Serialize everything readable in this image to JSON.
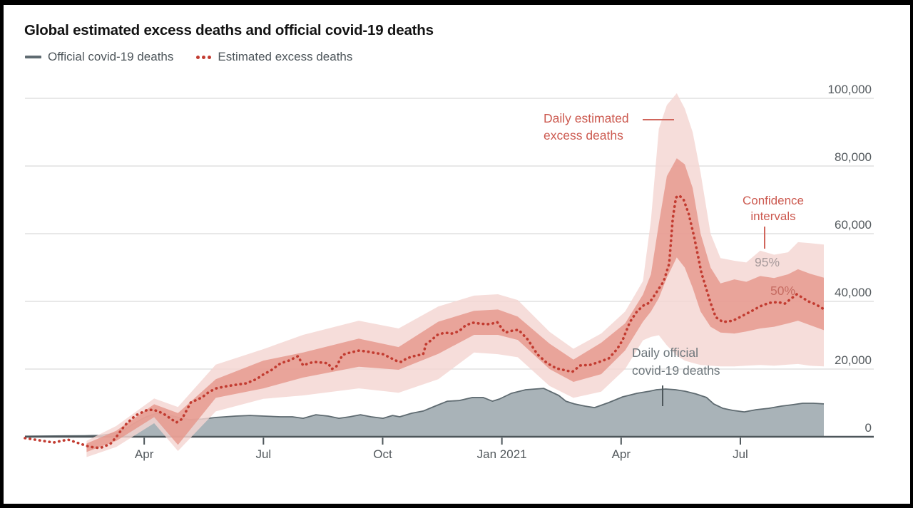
{
  "title": "Global estimated excess deaths and official covid-19 deaths",
  "legend": {
    "official": {
      "label": "Official covid-19 deaths",
      "color": "#5f6b71",
      "marker": "dash-line"
    },
    "excess": {
      "label": "Estimated excess deaths",
      "color": "#c23b30",
      "marker": "three-dots"
    }
  },
  "annotations": {
    "daily_excess": {
      "line1": "Daily estimated",
      "line2": "excess deaths",
      "color": "#cc5a50"
    },
    "confidence": {
      "line1": "Confidence",
      "line2": "intervals",
      "color": "#cc5a50"
    },
    "ci95": "95%",
    "ci50": "50%",
    "daily_official": {
      "line1": "Daily official",
      "line2": "covid-19 deaths",
      "color": "#6d767b"
    }
  },
  "colors": {
    "excess_line": "#c23b30",
    "official_line": "#5f6b71",
    "official_fill": "#a9b3b8",
    "band95_fill": "#f4d6d2",
    "band50_fill": "#e59488",
    "gridline": "#d9d9d9",
    "axis_line": "#4d565a",
    "tick_label": "#53595d",
    "title_text": "#131313",
    "frame_border": "#000000"
  },
  "chart_data": {
    "type": "line",
    "title": "Global estimated excess deaths and official covid-19 deaths",
    "x_unit": "months since Jan 2020 (0 = Jan 2020)",
    "x_domain": [
      0,
      20.1
    ],
    "y_domain": [
      -8000,
      104000
    ],
    "grid": true,
    "legend_position": "top-left",
    "y_ticks": [
      {
        "v": 0,
        "label": "0"
      },
      {
        "v": 20000,
        "label": "20,000"
      },
      {
        "v": 40000,
        "label": "40,000"
      },
      {
        "v": 60000,
        "label": "60,000"
      },
      {
        "v": 80000,
        "label": "80,000"
      },
      {
        "v": 100000,
        "label": "100,000"
      }
    ],
    "x_ticks": [
      {
        "m": 3,
        "label": "Apr"
      },
      {
        "m": 6,
        "label": "Jul"
      },
      {
        "m": 9,
        "label": "Oct"
      },
      {
        "m": 12,
        "label": "Jan 2021"
      },
      {
        "m": 15,
        "label": "Apr"
      },
      {
        "m": 18,
        "label": "Jul"
      }
    ],
    "series": [
      {
        "name": "Official covid-19 deaths",
        "style": "area",
        "line_color": "#5f6b71",
        "fill_color": "#a9b3b8",
        "points": [
          [
            0,
            150
          ],
          [
            0.5,
            200
          ],
          [
            1,
            250
          ],
          [
            1.5,
            300
          ],
          [
            1.89,
            400
          ],
          [
            2.3,
            1050
          ],
          [
            2.51,
            2100
          ],
          [
            2.78,
            4200
          ],
          [
            3.05,
            5900
          ],
          [
            3.32,
            6950
          ],
          [
            3.59,
            6500
          ],
          [
            3.86,
            5700
          ],
          [
            4.13,
            5050
          ],
          [
            4.45,
            5250
          ],
          [
            4.81,
            5700
          ],
          [
            5.3,
            6100
          ],
          [
            5.66,
            6300
          ],
          [
            6.01,
            6100
          ],
          [
            6.43,
            5900
          ],
          [
            6.73,
            5900
          ],
          [
            7,
            5450
          ],
          [
            7.32,
            6500
          ],
          [
            7.63,
            6100
          ],
          [
            7.9,
            5450
          ],
          [
            8.17,
            5900
          ],
          [
            8.44,
            6500
          ],
          [
            8.71,
            5900
          ],
          [
            9.01,
            5450
          ],
          [
            9.25,
            6300
          ],
          [
            9.43,
            5900
          ],
          [
            9.73,
            6950
          ],
          [
            10.02,
            7600
          ],
          [
            10.32,
            9050
          ],
          [
            10.63,
            10500
          ],
          [
            10.92,
            10700
          ],
          [
            11.26,
            11600
          ],
          [
            11.53,
            11600
          ],
          [
            11.76,
            10500
          ],
          [
            11.94,
            11150
          ],
          [
            12.24,
            12850
          ],
          [
            12.6,
            13900
          ],
          [
            13.05,
            14300
          ],
          [
            13.43,
            12200
          ],
          [
            13.61,
            10500
          ],
          [
            13.82,
            9700
          ],
          [
            14.09,
            9050
          ],
          [
            14.33,
            8600
          ],
          [
            14.69,
            10100
          ],
          [
            15.04,
            11800
          ],
          [
            15.4,
            12850
          ],
          [
            15.71,
            13450
          ],
          [
            15.89,
            13900
          ],
          [
            16.12,
            14100
          ],
          [
            16.37,
            13900
          ],
          [
            16.61,
            13450
          ],
          [
            16.88,
            12650
          ],
          [
            17.15,
            11600
          ],
          [
            17.33,
            9700
          ],
          [
            17.56,
            8400
          ],
          [
            17.81,
            7800
          ],
          [
            18.1,
            7350
          ],
          [
            18.4,
            8000
          ],
          [
            18.71,
            8400
          ],
          [
            19.03,
            9050
          ],
          [
            19.3,
            9450
          ],
          [
            19.57,
            9900
          ],
          [
            19.84,
            9900
          ],
          [
            20.1,
            9700
          ]
        ]
      },
      {
        "name": "Estimated excess deaths",
        "style": "dotted-line",
        "line_color": "#c23b30",
        "points": [
          [
            0,
            -400
          ],
          [
            0.36,
            -1050
          ],
          [
            0.72,
            -1700
          ],
          [
            1.08,
            -850
          ],
          [
            1.35,
            -1900
          ],
          [
            1.62,
            -2950
          ],
          [
            1.89,
            -3350
          ],
          [
            2.15,
            -2100
          ],
          [
            2.3,
            0
          ],
          [
            2.51,
            3350
          ],
          [
            2.78,
            6300
          ],
          [
            3.05,
            7800
          ],
          [
            3.23,
            8000
          ],
          [
            3.47,
            6950
          ],
          [
            3.68,
            5250
          ],
          [
            3.81,
            4200
          ],
          [
            3.95,
            5250
          ],
          [
            4.17,
            10100
          ],
          [
            4.45,
            11600
          ],
          [
            4.63,
            13250
          ],
          [
            4.81,
            14300
          ],
          [
            5.08,
            14950
          ],
          [
            5.3,
            15350
          ],
          [
            5.57,
            15800
          ],
          [
            5.83,
            17050
          ],
          [
            6.01,
            18500
          ],
          [
            6.19,
            19600
          ],
          [
            6.43,
            21700
          ],
          [
            6.64,
            22500
          ],
          [
            6.87,
            23800
          ],
          [
            7,
            21050
          ],
          [
            7.14,
            21700
          ],
          [
            7.27,
            22100
          ],
          [
            7.49,
            21900
          ],
          [
            7.63,
            21700
          ],
          [
            7.72,
            20000
          ],
          [
            7.84,
            20850
          ],
          [
            7.99,
            24200
          ],
          [
            8.17,
            24850
          ],
          [
            8.4,
            25450
          ],
          [
            8.58,
            25250
          ],
          [
            8.76,
            24850
          ],
          [
            9.01,
            24400
          ],
          [
            9.19,
            23350
          ],
          [
            9.37,
            22300
          ],
          [
            9.48,
            22100
          ],
          [
            9.6,
            23150
          ],
          [
            9.78,
            23800
          ],
          [
            10.02,
            24400
          ],
          [
            10.09,
            27350
          ],
          [
            10.23,
            28600
          ],
          [
            10.38,
            30100
          ],
          [
            10.56,
            30750
          ],
          [
            10.74,
            30500
          ],
          [
            10.92,
            31150
          ],
          [
            11.08,
            32850
          ],
          [
            11.26,
            33700
          ],
          [
            11.44,
            33450
          ],
          [
            11.62,
            33250
          ],
          [
            11.76,
            33450
          ],
          [
            11.88,
            33900
          ],
          [
            12.08,
            30750
          ],
          [
            12.26,
            31350
          ],
          [
            12.42,
            31600
          ],
          [
            12.66,
            28600
          ],
          [
            12.89,
            24400
          ],
          [
            13.14,
            21700
          ],
          [
            13.37,
            20200
          ],
          [
            13.61,
            19600
          ],
          [
            13.77,
            19150
          ],
          [
            13.97,
            21050
          ],
          [
            14.22,
            21250
          ],
          [
            14.45,
            22100
          ],
          [
            14.69,
            23150
          ],
          [
            14.9,
            25900
          ],
          [
            15.04,
            28600
          ],
          [
            15.22,
            33900
          ],
          [
            15.4,
            37050
          ],
          [
            15.58,
            38950
          ],
          [
            15.71,
            39550
          ],
          [
            15.89,
            42700
          ],
          [
            16.07,
            45900
          ],
          [
            16.21,
            51150
          ],
          [
            16.3,
            64500
          ],
          [
            16.38,
            70700
          ],
          [
            16.46,
            71300
          ],
          [
            16.57,
            70100
          ],
          [
            16.7,
            65900
          ],
          [
            16.84,
            58950
          ],
          [
            17.02,
            48400
          ],
          [
            17.25,
            39550
          ],
          [
            17.38,
            35350
          ],
          [
            17.56,
            33900
          ],
          [
            17.81,
            34300
          ],
          [
            17.99,
            35350
          ],
          [
            18.27,
            37050
          ],
          [
            18.49,
            38500
          ],
          [
            18.72,
            39550
          ],
          [
            18.94,
            39800
          ],
          [
            19.12,
            39350
          ],
          [
            19.26,
            40650
          ],
          [
            19.42,
            42100
          ],
          [
            19.57,
            41050
          ],
          [
            19.71,
            40000
          ],
          [
            19.89,
            39150
          ],
          [
            20.1,
            37700
          ]
        ]
      }
    ],
    "bands": {
      "label": "Confidence intervals",
      "levels": [
        "95%",
        "50%"
      ],
      "color_95": "#f4d6d2",
      "opacity_95": 0.82,
      "color_50": "#e59488",
      "opacity_50": 0.78,
      "columns": [
        "m",
        "lo95",
        "lo50",
        "hi50",
        "hi95"
      ],
      "points": [
        [
          1.55,
          -6000,
          -4500,
          -2000,
          -1200
        ],
        [
          2.3,
          -3000,
          -1200,
          1800,
          3200
        ],
        [
          3.25,
          4000,
          5800,
          9600,
          11300
        ],
        [
          3.85,
          -4200,
          -2400,
          7000,
          8800
        ],
        [
          4.8,
          7500,
          11500,
          17000,
          21300
        ],
        [
          6,
          11200,
          14300,
          22500,
          25900
        ],
        [
          7,
          12200,
          17500,
          24900,
          30100
        ],
        [
          8.4,
          14300,
          20700,
          29000,
          34300
        ],
        [
          9.4,
          13000,
          19800,
          26500,
          32000
        ],
        [
          10.4,
          17000,
          24500,
          34000,
          38500
        ],
        [
          11.3,
          24900,
          30100,
          37200,
          41700
        ],
        [
          11.9,
          24400,
          30100,
          37600,
          42100
        ],
        [
          12.4,
          23500,
          28600,
          35500,
          40400
        ],
        [
          13.2,
          15000,
          20000,
          27500,
          31000
        ],
        [
          13.8,
          11500,
          16200,
          22800,
          26000
        ],
        [
          14.5,
          13300,
          18500,
          27800,
          30500
        ],
        [
          15.1,
          20000,
          25500,
          33500,
          37000
        ],
        [
          15.55,
          28500,
          34000,
          42000,
          46000
        ],
        [
          15.75,
          29500,
          37000,
          48000,
          64000
        ],
        [
          15.95,
          30000,
          41000,
          63000,
          91000
        ],
        [
          16.15,
          27000,
          47000,
          77000,
          98000
        ],
        [
          16.4,
          24000,
          53000,
          82300,
          101500
        ],
        [
          16.6,
          22500,
          50000,
          80500,
          97000
        ],
        [
          16.8,
          21800,
          44000,
          73500,
          90000
        ],
        [
          17,
          21200,
          37000,
          60000,
          78000
        ],
        [
          17.25,
          21000,
          32500,
          50000,
          60000
        ],
        [
          17.5,
          20800,
          30800,
          45300,
          52800
        ],
        [
          17.85,
          20800,
          30500,
          46500,
          52000
        ],
        [
          18.15,
          21000,
          31100,
          45800,
          51500
        ],
        [
          18.5,
          21200,
          32000,
          47500,
          55000
        ],
        [
          18.85,
          21000,
          32500,
          46900,
          53800
        ],
        [
          19.2,
          21300,
          33500,
          48000,
          54500
        ],
        [
          19.45,
          21500,
          34300,
          49500,
          57500
        ],
        [
          19.75,
          21000,
          33000,
          48200,
          57200
        ],
        [
          20.1,
          20800,
          31500,
          47000,
          56800
        ]
      ]
    }
  }
}
